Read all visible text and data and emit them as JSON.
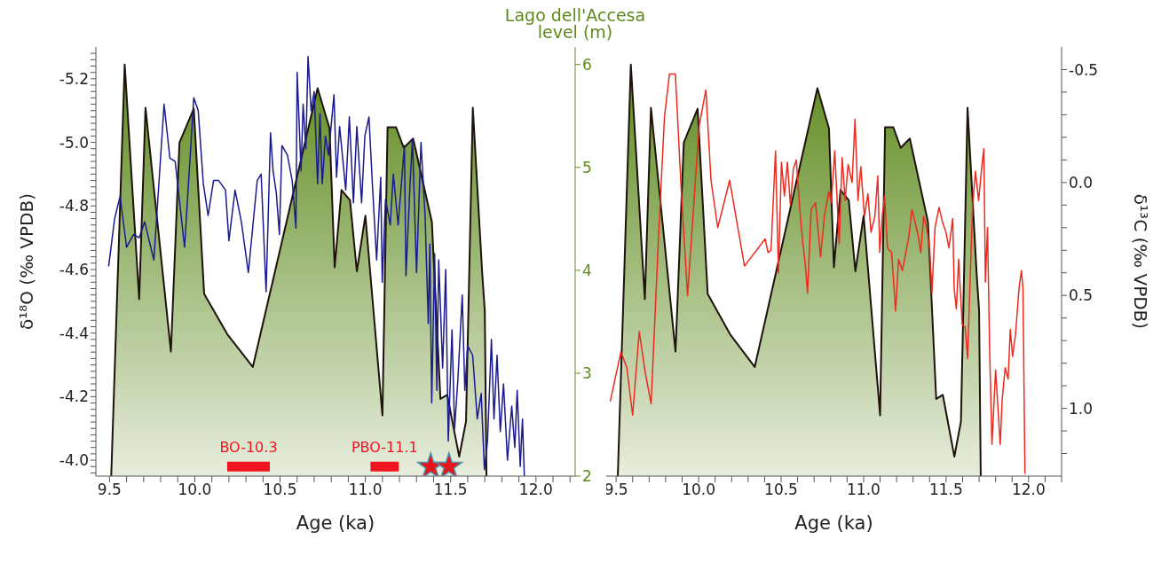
{
  "chart_data": [
    {
      "type": "line",
      "xlabel": "Age (ka)",
      "ylabel": "δ¹⁸O (‰ VPDB)",
      "y2label": "Lago dell'Accesa level (m)",
      "xlim": [
        9.42,
        12.23
      ],
      "xticks": [
        9.5,
        {
          "value": 9.6,
          "label": null
        },
        {
          "value": 9.7,
          "label": null
        },
        {
          "value": 9.8,
          "label": null
        },
        {
          "value": 9.9,
          "label": null
        },
        {
          "value": 10,
          "label": "10.0"
        },
        {
          "value": 10.1,
          "label": null
        },
        {
          "value": 10.2,
          "label": null
        },
        {
          "value": 10.3,
          "label": null
        },
        {
          "value": 10.4,
          "label": null
        },
        10.5,
        {
          "value": 10.6,
          "label": null
        },
        {
          "value": 10.7,
          "label": null
        },
        {
          "value": 10.8,
          "label": null
        },
        {
          "value": 10.9,
          "label": null
        },
        {
          "value": 11,
          "label": "11.0"
        },
        {
          "value": 11.1,
          "label": null
        },
        {
          "value": 11.2,
          "label": null
        },
        {
          "value": 11.3,
          "label": null
        },
        {
          "value": 11.4,
          "label": null
        },
        11.5,
        {
          "value": 11.6,
          "label": null
        },
        {
          "value": 11.7,
          "label": null
        },
        {
          "value": 11.8,
          "label": null
        },
        {
          "value": 11.9,
          "label": null
        },
        {
          "value": 12,
          "label": "12.0"
        },
        {
          "value": 12.1,
          "label": null
        },
        {
          "value": 12.2,
          "label": null
        }
      ],
      "ylim": [
        -3.95,
        -5.3
      ],
      "yticks": [
        {
          "value": -5.28,
          "label": null
        },
        {
          "value": -5.26,
          "label": null
        },
        {
          "value": -5.24,
          "label": null
        },
        {
          "value": -5.22,
          "label": null
        },
        -5.2,
        {
          "value": -5.18,
          "label": null
        },
        {
          "value": -5.16,
          "label": null
        },
        {
          "value": -5.14,
          "label": null
        },
        {
          "value": -5.12,
          "label": null
        },
        {
          "value": -5.1,
          "label": null
        },
        {
          "value": -5.08,
          "label": null
        },
        {
          "value": -5.06,
          "label": null
        },
        {
          "value": -5.04,
          "label": null
        },
        {
          "value": -5.02,
          "label": null
        },
        {
          "value": -5,
          "label": "-5.0"
        },
        {
          "value": -4.98,
          "label": null
        },
        {
          "value": -4.96,
          "label": null
        },
        {
          "value": -4.94,
          "label": null
        },
        {
          "value": -4.92,
          "label": null
        },
        {
          "value": -4.9,
          "label": null
        },
        {
          "value": -4.88,
          "label": null
        },
        {
          "value": -4.86,
          "label": null
        },
        {
          "value": -4.84,
          "label": null
        },
        {
          "value": -4.82,
          "label": null
        },
        -4.8,
        {
          "value": -4.78,
          "label": null
        },
        {
          "value": -4.76,
          "label": null
        },
        {
          "value": -4.74,
          "label": null
        },
        {
          "value": -4.72,
          "label": null
        },
        {
          "value": -4.7,
          "label": null
        },
        {
          "value": -4.68,
          "label": null
        },
        {
          "value": -4.66,
          "label": null
        },
        {
          "value": -4.64,
          "label": null
        },
        {
          "value": -4.62,
          "label": null
        },
        -4.6,
        {
          "value": -4.58,
          "label": null
        },
        {
          "value": -4.56,
          "label": null
        },
        {
          "value": -4.54,
          "label": null
        },
        {
          "value": -4.52,
          "label": null
        },
        {
          "value": -4.5,
          "label": null
        },
        {
          "value": -4.48,
          "label": null
        },
        {
          "value": -4.46,
          "label": null
        },
        {
          "value": -4.44,
          "label": null
        },
        {
          "value": -4.42,
          "label": null
        },
        -4.4,
        {
          "value": -4.38,
          "label": null
        },
        {
          "value": -4.36,
          "label": null
        },
        {
          "value": -4.34,
          "label": null
        },
        {
          "value": -4.32,
          "label": null
        },
        {
          "value": -4.3,
          "label": null
        },
        {
          "value": -4.28,
          "label": null
        },
        {
          "value": -4.26,
          "label": null
        },
        {
          "value": -4.24,
          "label": null
        },
        {
          "value": -4.22,
          "label": null
        },
        -4.2,
        {
          "value": -4.18,
          "label": null
        },
        {
          "value": -4.16,
          "label": null
        },
        {
          "value": -4.14,
          "label": null
        },
        {
          "value": -4.12,
          "label": null
        },
        {
          "value": -4.1,
          "label": null
        },
        {
          "value": -4.08,
          "label": null
        },
        {
          "value": -4.06,
          "label": null
        },
        {
          "value": -4.04,
          "label": null
        },
        {
          "value": -4.02,
          "label": null
        },
        {
          "value": -4,
          "label": "-4.0"
        },
        {
          "value": -3.98,
          "label": null
        },
        {
          "value": -3.96,
          "label": null
        }
      ],
      "y2lim": [
        2,
        6.17
      ],
      "y2ticks": [
        2,
        3,
        4,
        5,
        6
      ],
      "series": [
        {
          "type": "area",
          "axis": "y2",
          "color": "#5e8a1e",
          "x": [
            9.51,
            9.589,
            9.674,
            9.711,
            9.86,
            9.91,
            9.994,
            10.055,
            10.19,
            10.34,
            10.72,
            10.79,
            10.82,
            10.86,
            10.91,
            10.95,
            11.0,
            11.1,
            11.13,
            11.18,
            11.225,
            11.28,
            11.39,
            11.44,
            11.48,
            11.55,
            11.59,
            11.63,
            11.685,
            11.7,
            11.71
          ],
          "values": [
            2,
            6.0,
            3.72,
            5.58,
            3.21,
            5.24,
            5.57,
            3.77,
            3.38,
            3.06,
            5.77,
            5.38,
            4.03,
            4.78,
            4.68,
            3.99,
            4.53,
            2.59,
            5.39,
            5.39,
            5.19,
            5.28,
            4.47,
            2.75,
            2.79,
            2.19,
            2.53,
            5.58,
            3.97,
            3.61,
            2
          ]
        },
        {
          "color": "#1a1a8e",
          "x": [
            9.495,
            9.53,
            9.562,
            9.6,
            9.64,
            9.674,
            9.706,
            9.76,
            9.82,
            9.854,
            9.885,
            9.94,
            9.994,
            10.02,
            10.05,
            10.078,
            10.11,
            10.14,
            10.18,
            10.2,
            10.236,
            10.273,
            10.314,
            10.366,
            10.389,
            10.418,
            10.444,
            10.459,
            10.478,
            10.496,
            10.511,
            10.543,
            10.571,
            10.593,
            10.6,
            10.623,
            10.635,
            10.651,
            10.664,
            10.682,
            10.7,
            10.72,
            10.734,
            10.747,
            10.766,
            10.784,
            10.816,
            10.831,
            10.849,
            10.885,
            10.906,
            10.93,
            10.95,
            10.978,
            10.997,
            11.021,
            11.043,
            11.066,
            11.09,
            11.099,
            11.118,
            11.146,
            11.164,
            11.192,
            11.229,
            11.238,
            11.262,
            11.276,
            11.3,
            11.326,
            11.35,
            11.369,
            11.378,
            11.389,
            11.406,
            11.419,
            11.43,
            11.453,
            11.471,
            11.486,
            11.508,
            11.523,
            11.542,
            11.568,
            11.583,
            11.6,
            11.629,
            11.656,
            11.679,
            11.698,
            11.716,
            11.739,
            11.754,
            11.772,
            11.791,
            11.81,
            11.833,
            11.858,
            11.876,
            11.89,
            11.908,
            11.921,
            11.932
          ],
          "values": [
            -4.61,
            -4.76,
            -4.83,
            -4.67,
            -4.71,
            -4.7,
            -4.75,
            -4.63,
            -5.12,
            -4.95,
            -4.94,
            -4.67,
            -5.14,
            -5.1,
            -4.87,
            -4.77,
            -4.88,
            -4.88,
            -4.85,
            -4.69,
            -4.85,
            -4.75,
            -4.59,
            -4.88,
            -4.9,
            -4.53,
            -5.03,
            -4.91,
            -4.84,
            -4.71,
            -4.99,
            -4.96,
            -4.88,
            -4.73,
            -5.22,
            -4.91,
            -5.12,
            -4.98,
            -5.27,
            -5.1,
            -5.16,
            -4.87,
            -5.09,
            -4.87,
            -5.02,
            -4.96,
            -5.15,
            -4.89,
            -5.05,
            -4.85,
            -5.08,
            -4.81,
            -5.05,
            -4.81,
            -5.02,
            -5.08,
            -4.85,
            -4.63,
            -4.89,
            -4.56,
            -4.82,
            -4.74,
            -4.9,
            -4.74,
            -4.99,
            -4.58,
            -4.87,
            -5.01,
            -4.59,
            -5.0,
            -4.77,
            -4.43,
            -4.68,
            -4.18,
            -4.65,
            -4.22,
            -4.63,
            -4.29,
            -4.6,
            -4.06,
            -4.41,
            -4.1,
            -4.25,
            -4.52,
            -4.22,
            -4.36,
            -4.33,
            -4.13,
            -4.21,
            -3.97,
            -4.06,
            -4.38,
            -4.13,
            -4.33,
            -4.09,
            -4.24,
            -4.0,
            -4.17,
            -4.04,
            -4.22,
            -3.98,
            -4.13,
            -3.95
          ]
        },
        {
          "type": "scatter",
          "name": "BO-10.3",
          "color": "#f0141e",
          "marker": "square",
          "x": [
            10.315
          ],
          "values": [
            -3.98
          ],
          "xerrors": [
            0.125
          ]
        },
        {
          "type": "scatter",
          "name": "PBO-11.1",
          "color": "#f0141e",
          "marker": "square",
          "x": [
            11.113
          ],
          "values": [
            -3.98
          ],
          "xerrors": [
            0.083
          ]
        },
        {
          "type": "scatter",
          "color": "#e8141b",
          "marker": "star",
          "x": [
            11.383,
            11.49
          ],
          "values": [
            -3.98,
            -3.98
          ]
        }
      ]
    },
    {
      "type": "line",
      "xlabel": "Age (ka)",
      "ylabel": "δ¹³C (‰ VPDB)",
      "xlim": [
        9.44,
        12.2
      ],
      "xticks": [
        9.5,
        {
          "value": 9.6,
          "label": null
        },
        {
          "value": 9.7,
          "label": null
        },
        {
          "value": 9.8,
          "label": null
        },
        {
          "value": 9.9,
          "label": null
        },
        {
          "value": 10,
          "label": "10.0"
        },
        {
          "value": 10.1,
          "label": null
        },
        {
          "value": 10.2,
          "label": null
        },
        {
          "value": 10.3,
          "label": null
        },
        {
          "value": 10.4,
          "label": null
        },
        10.5,
        {
          "value": 10.6,
          "label": null
        },
        {
          "value": 10.7,
          "label": null
        },
        {
          "value": 10.8,
          "label": null
        },
        {
          "value": 10.9,
          "label": null
        },
        {
          "value": 11,
          "label": "11.0"
        },
        {
          "value": 11.1,
          "label": null
        },
        {
          "value": 11.2,
          "label": null
        },
        {
          "value": 11.3,
          "label": null
        },
        {
          "value": 11.4,
          "label": null
        },
        11.5,
        {
          "value": 11.6,
          "label": null
        },
        {
          "value": 11.7,
          "label": null
        },
        {
          "value": 11.8,
          "label": null
        },
        {
          "value": 11.9,
          "label": null
        },
        {
          "value": 12,
          "label": "12.0"
        },
        {
          "value": 12.1,
          "label": null
        },
        {
          "value": 12.2,
          "label": null
        }
      ],
      "y2lim": [
        2,
        6.17
      ],
      "tick_labels": "xy",
      "ylim": [
        1.3,
        -0.6
      ],
      "yticks": [
        -0.5,
        {
          "value": -0.4,
          "label": null
        },
        {
          "value": -0.3,
          "label": null
        },
        {
          "value": -0.2,
          "label": null
        },
        {
          "value": -0.1,
          "label": null
        },
        {
          "value": 0,
          "label": "0.0"
        },
        {
          "value": 0.1,
          "label": null
        },
        {
          "value": 0.2,
          "label": null
        },
        {
          "value": 0.3,
          "label": null
        },
        {
          "value": 0.4,
          "label": null
        },
        0.5,
        {
          "value": 0.6,
          "label": null
        },
        {
          "value": 0.7,
          "label": null
        },
        {
          "value": 0.8,
          "label": null
        },
        {
          "value": 0.9,
          "label": null
        },
        {
          "value": 1,
          "label": "1.0"
        },
        {
          "value": 1.1,
          "label": null
        },
        {
          "value": 1.2,
          "label": null
        }
      ],
      "series": [
        {
          "type": "area",
          "axis": "y2",
          "color": "#5e8a1e",
          "x": [
            9.51,
            9.589,
            9.674,
            9.711,
            9.86,
            9.91,
            9.994,
            10.055,
            10.19,
            10.34,
            10.72,
            10.79,
            10.82,
            10.86,
            10.91,
            10.95,
            11.0,
            11.1,
            11.13,
            11.18,
            11.225,
            11.28,
            11.39,
            11.44,
            11.48,
            11.55,
            11.59,
            11.63,
            11.685,
            11.7,
            11.71
          ],
          "values": [
            2,
            6.0,
            3.72,
            5.58,
            3.21,
            5.24,
            5.57,
            3.77,
            3.38,
            3.06,
            5.77,
            5.38,
            4.03,
            4.78,
            4.68,
            3.99,
            4.53,
            2.59,
            5.39,
            5.39,
            5.19,
            5.28,
            4.47,
            2.75,
            2.79,
            2.19,
            2.53,
            5.58,
            3.97,
            3.61,
            2
          ]
        },
        {
          "color": "#ee2a1e",
          "x": [
            9.464,
            9.529,
            9.565,
            9.6,
            9.64,
            9.676,
            9.712,
            9.757,
            9.793,
            9.823,
            9.859,
            9.895,
            9.933,
            10.003,
            10.044,
            10.075,
            10.116,
            10.188,
            10.278,
            10.403,
            10.421,
            10.439,
            10.466,
            10.484,
            10.502,
            10.52,
            10.538,
            10.556,
            10.574,
            10.592,
            10.61,
            10.628,
            10.646,
            10.66,
            10.682,
            10.709,
            10.739,
            10.762,
            10.789,
            10.804,
            10.825,
            10.852,
            10.87,
            10.888,
            10.906,
            10.93,
            10.948,
            10.966,
            10.983,
            11.005,
            11.026,
            11.045,
            11.068,
            11.086,
            11.098,
            11.113,
            11.127,
            11.145,
            11.17,
            11.194,
            11.212,
            11.235,
            11.256,
            11.274,
            11.293,
            11.31,
            11.332,
            11.346,
            11.364,
            11.382,
            11.4,
            11.414,
            11.433,
            11.457,
            11.476,
            11.499,
            11.517,
            11.54,
            11.549,
            11.562,
            11.576,
            11.598,
            11.616,
            11.63,
            11.651,
            11.661,
            11.678,
            11.697,
            11.715,
            11.729,
            11.738,
            11.751,
            11.763,
            11.778,
            11.8,
            11.828,
            11.84,
            11.858,
            11.876,
            11.889,
            11.903,
            11.921,
            11.943,
            11.957,
            11.966,
            11.978
          ],
          "values": [
            0.97,
            0.75,
            0.82,
            1.03,
            0.66,
            0.84,
            0.98,
            0.24,
            -0.29,
            -0.48,
            -0.48,
            0.04,
            0.5,
            -0.25,
            -0.41,
            -0.01,
            0.2,
            -0.01,
            0.37,
            0.25,
            0.31,
            0.3,
            -0.14,
            0.4,
            -0.09,
            0.06,
            -0.09,
            0.1,
            -0.06,
            -0.1,
            0.09,
            0.24,
            0.36,
            0.49,
            0.12,
            0.09,
            0.33,
            0.15,
            0.04,
            0.09,
            -0.14,
            0.27,
            -0.11,
            0.08,
            -0.08,
            0.0,
            -0.28,
            0.08,
            -0.07,
            0.15,
            0.05,
            0.22,
            0.15,
            -0.03,
            0.31,
            0.15,
            0.06,
            0.29,
            0.31,
            0.57,
            0.34,
            0.39,
            0.31,
            0.24,
            0.12,
            0.17,
            0.24,
            0.31,
            0.15,
            0.2,
            0.29,
            0.49,
            0.2,
            0.11,
            0.17,
            0.22,
            0.29,
            0.16,
            0.47,
            0.56,
            0.34,
            0.63,
            0.64,
            0.78,
            0.31,
            0.1,
            -0.05,
            0.08,
            -0.06,
            -0.15,
            0.44,
            0.2,
            0.71,
            1.16,
            0.83,
            1.16,
            0.96,
            0.82,
            0.87,
            0.65,
            0.77,
            0.67,
            0.46,
            0.39,
            0.47,
            1.29
          ]
        }
      ]
    }
  ]
}
